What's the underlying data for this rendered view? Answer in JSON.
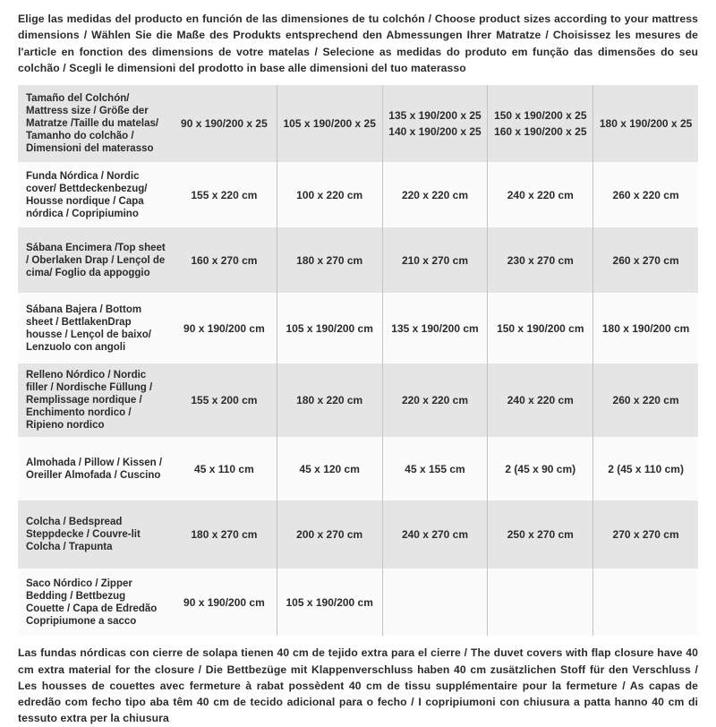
{
  "intro": {
    "text": "Elige las medidas del producto en función de las dimensiones de tu colchón / Choose product sizes according to your mattress dimensions / Wählen Sie die Maße des Produkts entsprechend den Abmessungen Ihrer Matratze / Choisissez les mesures de l'article en fonction des dimensions de votre matelas / Selecione as medidas do produto em função das dimensões do seu colchão / Scegli le dimensioni del prodotto in base alle dimensioni del tuo materasso"
  },
  "table": {
    "rows": [
      {
        "label": "Tamaño del Colchón/ Mattress size / Größe der Matratze /Taille du matelas/ Tamanho do colchão / Dimensioni del materasso",
        "values": [
          "90 x 190/200 x 25",
          "105 x 190/200 x 25",
          [
            "135 x 190/200 x 25",
            "140 x 190/200 x 25"
          ],
          [
            "150 x 190/200 x 25",
            "160 x 190/200 x 25"
          ],
          "180 x 190/200 x 25"
        ]
      },
      {
        "label": "Funda Nórdica /  Nordic cover/ Bettdeckenbezug/ Housse nordique  / Capa nórdica / Copripiumino",
        "values": [
          "155 x 220 cm",
          "100 x 220 cm",
          "220 x 220 cm",
          "240 x 220 cm",
          "260 x 220 cm"
        ]
      },
      {
        "label": "Sábana Encimera /Top sheet / Oberlaken Drap / Lençol de cima/ Foglio da appoggio",
        "values": [
          "160 x 270 cm",
          "180 x 270 cm",
          "210 x 270 cm",
          "230 x 270 cm",
          "260 x 270 cm"
        ]
      },
      {
        "label": "Sábana Bajera / Bottom sheet / BettlakenDrap housse / Lençol de baixo/ Lenzuolo con angoli",
        "values": [
          "90 x 190/200 cm",
          "105 x 190/200 cm",
          "135 x 190/200 cm",
          "150 x 190/200 cm",
          "180 x 190/200 cm"
        ]
      },
      {
        "label": "Relleno Nórdico / Nordic filler / Nordische Füllung / Remplissage nordique / Enchimento nordico / Ripieno nordico",
        "values": [
          "155 x 200 cm",
          "180 x 220 cm",
          "220 x 220 cm",
          "240 x 220 cm",
          "260 x 220 cm"
        ]
      },
      {
        "label": "Almohada  / Pillow / Kissen / Oreiller Almofada / Cuscino",
        "values": [
          "45 x 110 cm",
          "45 x 120 cm",
          "45 x 155 cm",
          "2 (45 x 90 cm)",
          "2 (45 x 110 cm)"
        ]
      },
      {
        "label": "Colcha / Bedspread Steppdecke / Couvre-lit Colcha / Trapunta",
        "values": [
          "180 x 270 cm",
          "200 x 270 cm",
          "240 x 270 cm",
          "250 x 270 cm",
          "270 x 270 cm"
        ]
      },
      {
        "label": "Saco Nórdico / Zipper Bedding / Bettbezug Couette  / Capa de Edredão Copripiumone a sacco",
        "values": [
          "90 x 190/200 cm",
          "105 x 190/200 cm",
          "",
          "",
          ""
        ]
      }
    ]
  },
  "footer": {
    "text": "Las fundas nórdicas con cierre de solapa tienen 40 cm de tejido extra para el cierre  / The duvet covers with flap closure have 40 cm extra material for the closure / Die Bettbezüge mit Klappenverschluss haben 40 cm zusätzlichen Stoff für den Verschluss / Les housses de couettes avec fermeture à rabat possèdent 40 cm de tissu supplémentaire pour la fermeture / As capas de edredão com fecho tipo aba têm 40 cm de tecido adicional para o fecho / I copripiumoni con chiusura a patta hanno 40 cm di tessuto extra per la chiusura"
  },
  "colors": {
    "row_gray": "#e5e5e5",
    "row_light": "#fbfbfb",
    "divider": "#c3c3c3",
    "text": "#2b2b2b"
  }
}
